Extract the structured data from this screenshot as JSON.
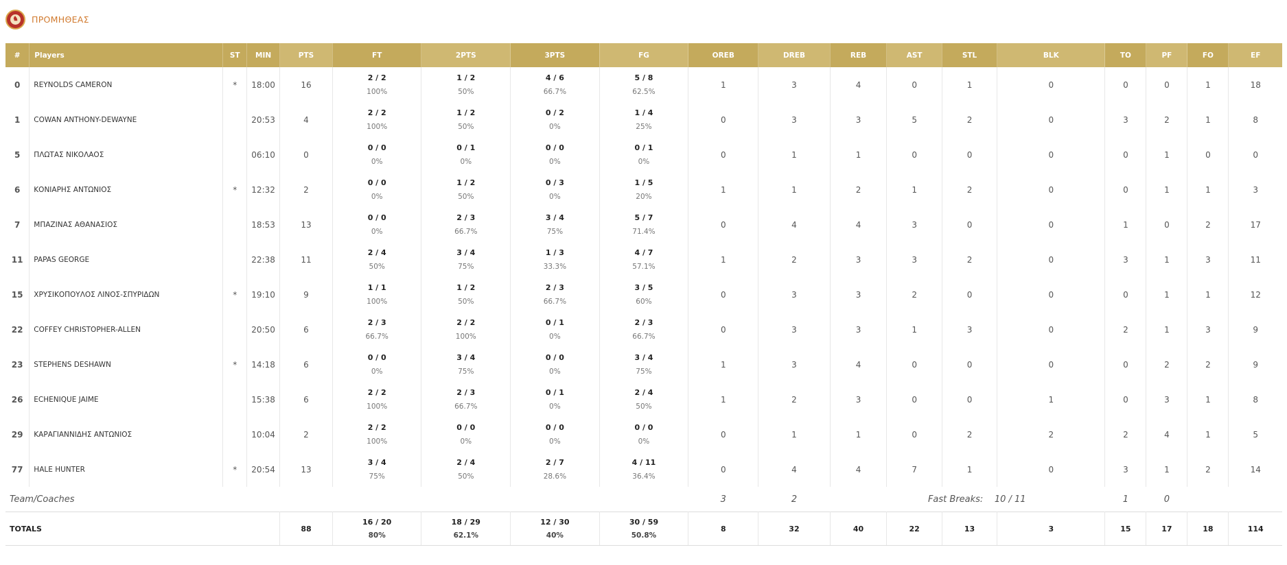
{
  "team": {
    "name": "ΠΡΟΜΗΘΕΑΣ",
    "logo_icon": "team-logo-icon",
    "accent": "#d17a2e"
  },
  "columns": [
    "#",
    "Players",
    "ST",
    "MIN",
    "PTS",
    "FT",
    "2PTS",
    "3PTS",
    "FG",
    "OREB",
    "DREB",
    "REB",
    "AST",
    "STL",
    "BLK",
    "TO",
    "PF",
    "FO",
    "EF"
  ],
  "header_color": "#c4aa5c",
  "players": [
    {
      "num": "0",
      "name": "REYNOLDS CAMERON",
      "st": "*",
      "min": "18:00",
      "pts": "16",
      "ft": "2 / 2",
      "ft_pct": "100%",
      "p2": "1 / 2",
      "p2_pct": "50%",
      "p3": "4 / 6",
      "p3_pct": "66.7%",
      "fg": "5 / 8",
      "fg_pct": "62.5%",
      "oreb": "1",
      "dreb": "3",
      "reb": "4",
      "ast": "0",
      "stl": "1",
      "blk": "0",
      "to": "0",
      "pf": "0",
      "fo": "1",
      "ef": "18"
    },
    {
      "num": "1",
      "name": "COWAN ANTHONY-DEWAYNE",
      "st": "",
      "min": "20:53",
      "pts": "4",
      "ft": "2 / 2",
      "ft_pct": "100%",
      "p2": "1 / 2",
      "p2_pct": "50%",
      "p3": "0 / 2",
      "p3_pct": "0%",
      "fg": "1 / 4",
      "fg_pct": "25%",
      "oreb": "0",
      "dreb": "3",
      "reb": "3",
      "ast": "5",
      "stl": "2",
      "blk": "0",
      "to": "3",
      "pf": "2",
      "fo": "1",
      "ef": "8"
    },
    {
      "num": "5",
      "name": "ΠΛΩΤΑΣ ΝΙΚΟΛΑΟΣ",
      "st": "",
      "min": "06:10",
      "pts": "0",
      "ft": "0 / 0",
      "ft_pct": "0%",
      "p2": "0 / 1",
      "p2_pct": "0%",
      "p3": "0 / 0",
      "p3_pct": "0%",
      "fg": "0 / 1",
      "fg_pct": "0%",
      "oreb": "0",
      "dreb": "1",
      "reb": "1",
      "ast": "0",
      "stl": "0",
      "blk": "0",
      "to": "0",
      "pf": "1",
      "fo": "0",
      "ef": "0"
    },
    {
      "num": "6",
      "name": "ΚΟΝΙΑΡΗΣ ΑΝΤΩΝΙΟΣ",
      "st": "*",
      "min": "12:32",
      "pts": "2",
      "ft": "0 / 0",
      "ft_pct": "0%",
      "p2": "1 / 2",
      "p2_pct": "50%",
      "p3": "0 / 3",
      "p3_pct": "0%",
      "fg": "1 / 5",
      "fg_pct": "20%",
      "oreb": "1",
      "dreb": "1",
      "reb": "2",
      "ast": "1",
      "stl": "2",
      "blk": "0",
      "to": "0",
      "pf": "1",
      "fo": "1",
      "ef": "3"
    },
    {
      "num": "7",
      "name": "ΜΠΑΖΙΝΑΣ ΑΘΑΝΑΣΙΟΣ",
      "st": "",
      "min": "18:53",
      "pts": "13",
      "ft": "0 / 0",
      "ft_pct": "0%",
      "p2": "2 / 3",
      "p2_pct": "66.7%",
      "p3": "3 / 4",
      "p3_pct": "75%",
      "fg": "5 / 7",
      "fg_pct": "71.4%",
      "oreb": "0",
      "dreb": "4",
      "reb": "4",
      "ast": "3",
      "stl": "0",
      "blk": "0",
      "to": "1",
      "pf": "0",
      "fo": "2",
      "ef": "17"
    },
    {
      "num": "11",
      "name": "PAPAS GEORGE",
      "st": "",
      "min": "22:38",
      "pts": "11",
      "ft": "2 / 4",
      "ft_pct": "50%",
      "p2": "3 / 4",
      "p2_pct": "75%",
      "p3": "1 / 3",
      "p3_pct": "33.3%",
      "fg": "4 / 7",
      "fg_pct": "57.1%",
      "oreb": "1",
      "dreb": "2",
      "reb": "3",
      "ast": "3",
      "stl": "2",
      "blk": "0",
      "to": "3",
      "pf": "1",
      "fo": "3",
      "ef": "11"
    },
    {
      "num": "15",
      "name": "ΧΡΥΣΙΚΟΠΟΥΛΟΣ ΛΙΝΟΣ-ΣΠΥΡΙΔΩΝ",
      "st": "*",
      "min": "19:10",
      "pts": "9",
      "ft": "1 / 1",
      "ft_pct": "100%",
      "p2": "1 / 2",
      "p2_pct": "50%",
      "p3": "2 / 3",
      "p3_pct": "66.7%",
      "fg": "3 / 5",
      "fg_pct": "60%",
      "oreb": "0",
      "dreb": "3",
      "reb": "3",
      "ast": "2",
      "stl": "0",
      "blk": "0",
      "to": "0",
      "pf": "1",
      "fo": "1",
      "ef": "12"
    },
    {
      "num": "22",
      "name": "COFFEY CHRISTOPHER-ALLEN",
      "st": "",
      "min": "20:50",
      "pts": "6",
      "ft": "2 / 3",
      "ft_pct": "66.7%",
      "p2": "2 / 2",
      "p2_pct": "100%",
      "p3": "0 / 1",
      "p3_pct": "0%",
      "fg": "2 / 3",
      "fg_pct": "66.7%",
      "oreb": "0",
      "dreb": "3",
      "reb": "3",
      "ast": "1",
      "stl": "3",
      "blk": "0",
      "to": "2",
      "pf": "1",
      "fo": "3",
      "ef": "9"
    },
    {
      "num": "23",
      "name": "STEPHENS DESHAWN",
      "st": "*",
      "min": "14:18",
      "pts": "6",
      "ft": "0 / 0",
      "ft_pct": "0%",
      "p2": "3 / 4",
      "p2_pct": "75%",
      "p3": "0 / 0",
      "p3_pct": "0%",
      "fg": "3 / 4",
      "fg_pct": "75%",
      "oreb": "1",
      "dreb": "3",
      "reb": "4",
      "ast": "0",
      "stl": "0",
      "blk": "0",
      "to": "0",
      "pf": "2",
      "fo": "2",
      "ef": "9"
    },
    {
      "num": "26",
      "name": "ECHENIQUE JAIME",
      "st": "",
      "min": "15:38",
      "pts": "6",
      "ft": "2 / 2",
      "ft_pct": "100%",
      "p2": "2 / 3",
      "p2_pct": "66.7%",
      "p3": "0 / 1",
      "p3_pct": "0%",
      "fg": "2 / 4",
      "fg_pct": "50%",
      "oreb": "1",
      "dreb": "2",
      "reb": "3",
      "ast": "0",
      "stl": "0",
      "blk": "1",
      "to": "0",
      "pf": "3",
      "fo": "1",
      "ef": "8"
    },
    {
      "num": "29",
      "name": "ΚΑΡΑΓΙΑΝΝΙΔΗΣ ΑΝΤΩΝΙΟΣ",
      "st": "",
      "min": "10:04",
      "pts": "2",
      "ft": "2 / 2",
      "ft_pct": "100%",
      "p2": "0 / 0",
      "p2_pct": "0%",
      "p3": "0 / 0",
      "p3_pct": "0%",
      "fg": "0 / 0",
      "fg_pct": "0%",
      "oreb": "0",
      "dreb": "1",
      "reb": "1",
      "ast": "0",
      "stl": "2",
      "blk": "2",
      "to": "2",
      "pf": "4",
      "fo": "1",
      "ef": "5"
    },
    {
      "num": "77",
      "name": "HALE HUNTER",
      "st": "*",
      "min": "20:54",
      "pts": "13",
      "ft": "3 / 4",
      "ft_pct": "75%",
      "p2": "2 / 4",
      "p2_pct": "50%",
      "p3": "2 / 7",
      "p3_pct": "28.6%",
      "fg": "4 / 11",
      "fg_pct": "36.4%",
      "oreb": "0",
      "dreb": "4",
      "reb": "4",
      "ast": "7",
      "stl": "1",
      "blk": "0",
      "to": "3",
      "pf": "1",
      "fo": "2",
      "ef": "14"
    }
  ],
  "team_row": {
    "label": "Team/Coaches",
    "oreb": "3",
    "dreb": "2",
    "fast_breaks_label": "Fast Breaks:",
    "fast_breaks": "10 / 11",
    "to": "1",
    "pf": "0"
  },
  "totals": {
    "label": "TOTALS",
    "pts": "88",
    "ft": "16 / 20",
    "ft_pct": "80%",
    "p2": "18 / 29",
    "p2_pct": "62.1%",
    "p3": "12 / 30",
    "p3_pct": "40%",
    "fg": "30 / 59",
    "fg_pct": "50.8%",
    "oreb": "8",
    "dreb": "32",
    "reb": "40",
    "ast": "22",
    "stl": "13",
    "blk": "3",
    "to": "15",
    "pf": "17",
    "fo": "18",
    "ef": "114"
  }
}
